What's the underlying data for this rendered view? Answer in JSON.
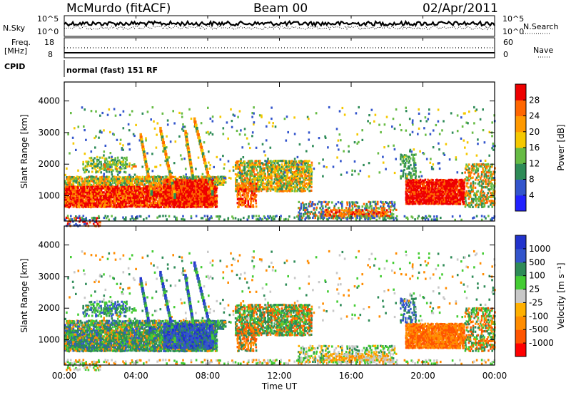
{
  "header": {
    "station": "McMurdo (fitACF)",
    "beam": "Beam 00",
    "date": "02/Apr/2011"
  },
  "strip_panels": {
    "nsky_label": "N.Sky",
    "nsearch_label": "N.Search",
    "nsky_ticks": [
      "10^5",
      "10^0"
    ],
    "nsearch_ticks": [
      "10^5",
      "10^0"
    ],
    "freq_label_line1": "Freq.",
    "freq_label_line2": "[MHz]",
    "freq_ticks": [
      "18",
      "8"
    ],
    "nave_label": "Nave",
    "nave_ticks": [
      "60",
      "0"
    ],
    "cpid_label": "CPID",
    "cpid_text": "normal (fast) 151 RF"
  },
  "colors": {
    "power": [
      "#2222ff",
      "#3355cc",
      "#2e8b57",
      "#66bb44",
      "#f5c800",
      "#ff9900",
      "#ff6600",
      "#ee0000"
    ],
    "velocity": [
      "#ff0000",
      "#ff5500",
      "#ff8c00",
      "#ffb000",
      "#c8c8c8",
      "#44cc33",
      "#2e8b57",
      "#3355cc",
      "#2233cc"
    ]
  },
  "chart_data": [
    {
      "type": "heatmap",
      "name": "power",
      "ylabel": "Slant Range [km]",
      "xlabel": "",
      "x_ticks": [
        "00:00",
        "04:00",
        "08:00",
        "12:00",
        "16:00",
        "20:00",
        "00:00"
      ],
      "y_ticks": [
        1000,
        2000,
        3000,
        4000
      ],
      "ylim": [
        200,
        4600
      ],
      "xlim_hours": [
        0,
        24
      ],
      "colorbar_label": "Power [dB]",
      "colorbar_ticks": [
        "4",
        "8",
        "12",
        "16",
        "20",
        "24",
        "28"
      ],
      "colorbar_range": [
        0,
        32
      ]
    },
    {
      "type": "heatmap",
      "name": "velocity",
      "ylabel": "Slant Range [km]",
      "xlabel": "Time UT",
      "x_ticks": [
        "00:00",
        "04:00",
        "08:00",
        "12:00",
        "16:00",
        "20:00",
        "00:00"
      ],
      "y_ticks": [
        1000,
        2000,
        3000,
        4000
      ],
      "ylim": [
        200,
        4600
      ],
      "xlim_hours": [
        0,
        24
      ],
      "colorbar_label": "Velocity [m s⁻¹]",
      "colorbar_ticks": [
        "-1000",
        "-500",
        "-100",
        "-25",
        "25",
        "100",
        "500",
        "1000"
      ]
    }
  ]
}
